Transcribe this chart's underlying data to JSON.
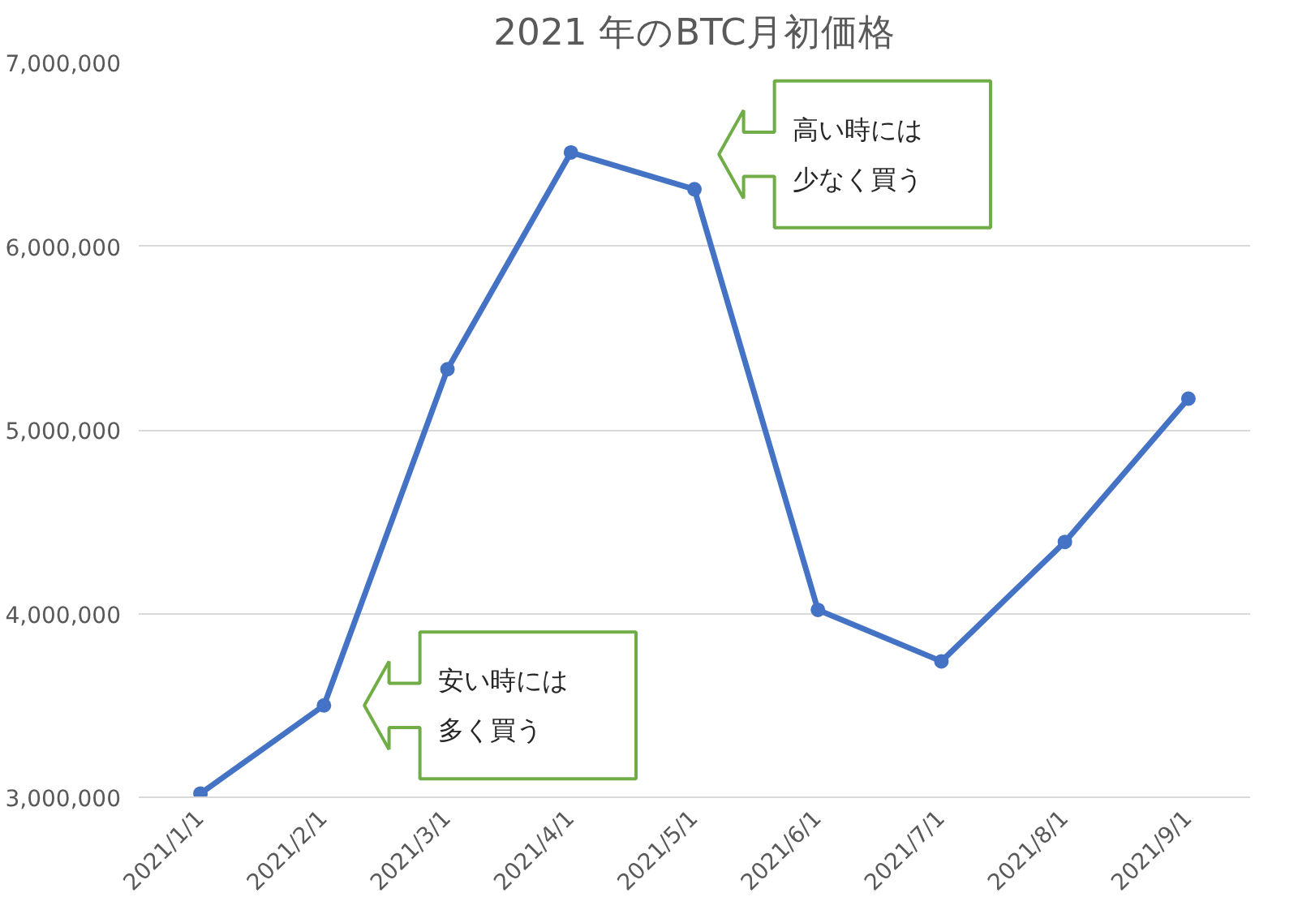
{
  "chart_data": {
    "type": "line",
    "title": "2021 年のBTC月初価格",
    "categories": [
      "2021/1/1",
      "2021/2/1",
      "2021/3/1",
      "2021/4/1",
      "2021/5/1",
      "2021/6/1",
      "2021/7/1",
      "2021/8/1",
      "2021/9/1"
    ],
    "series": [
      {
        "color": "#4472c4",
        "values": [
          3020000,
          3500000,
          5330000,
          6510000,
          6310000,
          4020000,
          3740000,
          4390000,
          5170000
        ]
      }
    ],
    "ylim": [
      3000000,
      7000000
    ],
    "yticks": [
      {
        "value": 3000000,
        "label": "3,000,000"
      },
      {
        "value": 4000000,
        "label": "4,000,000"
      },
      {
        "value": 5000000,
        "label": "5,000,000"
      },
      {
        "value": 6000000,
        "label": "6,000,000"
      },
      {
        "value": 7000000,
        "label": "7,000,000"
      }
    ],
    "grid": "y",
    "marker": "circle",
    "line_style": "solid",
    "annotations": [
      "高い時には少なく買う",
      "安い時には多く買う"
    ]
  }
}
